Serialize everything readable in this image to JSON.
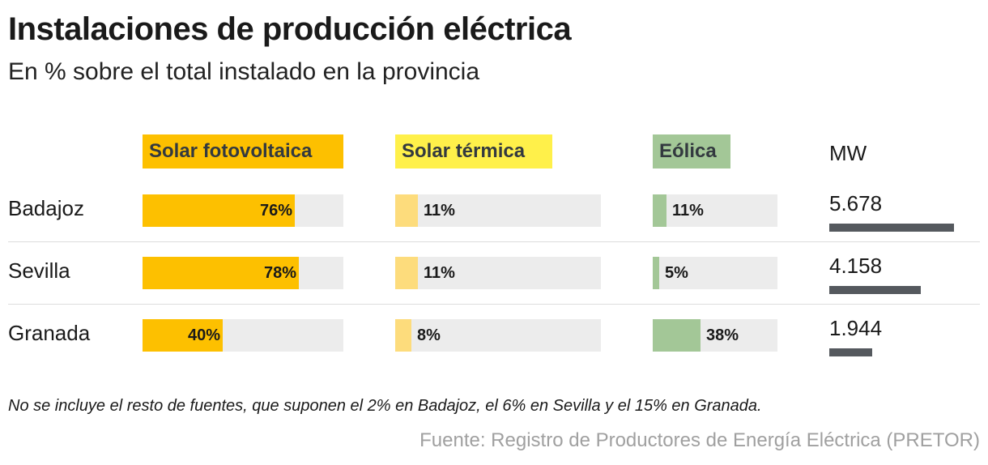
{
  "header": {
    "title": "Instalaciones de producción eléctrica",
    "subtitle": "En % sobre el total instalado en la provincia"
  },
  "colors": {
    "fotovoltaica": "#fdc000",
    "termica_fill": "#fddc7c",
    "termica_header": "#fff04a",
    "eolica": "#a3c797",
    "track": "#ececec",
    "mw_bar": "#55595e"
  },
  "footer": {
    "note": "No se incluye el resto de fuentes, que suponen el 2% en Badajoz, el 6% en Sevilla y el 15% en Granada.",
    "source": "Fuente: Registro de Productores de Energía Eléctrica (PRETOR)"
  },
  "chart_data": {
    "type": "bar",
    "title": "Instalaciones de producción eléctrica",
    "subtitle": "En % sobre el total instalado en la provincia",
    "unit": "%",
    "xlim": [
      0,
      100
    ],
    "categories": [
      "Badajoz",
      "Sevilla",
      "Granada"
    ],
    "series": [
      {
        "name": "Solar fotovoltaica",
        "values": [
          76,
          78,
          40
        ],
        "labels": [
          "76%",
          "78%",
          "40%"
        ]
      },
      {
        "name": "Solar térmica",
        "values": [
          11,
          11,
          8
        ],
        "labels": [
          "11%",
          "11%",
          "8%"
        ]
      },
      {
        "name": "Eólica",
        "values": [
          11,
          5,
          38
        ],
        "labels": [
          "11%",
          "5%",
          "38%"
        ]
      }
    ],
    "mw": {
      "label": "MW",
      "values": [
        5678,
        4158,
        1944
      ],
      "labels": [
        "5.678",
        "4.158",
        "1.944"
      ]
    }
  }
}
